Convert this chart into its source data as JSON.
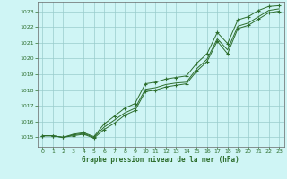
{
  "title": "Graphe pression niveau de la mer (hPa)",
  "bg_color": "#cff5f5",
  "grid_color": "#99cccc",
  "line_color": "#2d6e2d",
  "marker_color": "#2d6e2d",
  "xlim": [
    -0.5,
    23.5
  ],
  "ylim": [
    1014.4,
    1023.6
  ],
  "yticks": [
    1015,
    1016,
    1017,
    1018,
    1019,
    1020,
    1021,
    1022,
    1023
  ],
  "xticks": [
    0,
    1,
    2,
    3,
    4,
    5,
    6,
    7,
    8,
    9,
    10,
    11,
    12,
    13,
    14,
    15,
    16,
    17,
    18,
    19,
    20,
    21,
    22,
    23
  ],
  "series1": [
    1015.1,
    1015.1,
    1015.0,
    1015.1,
    1015.2,
    1014.95,
    1015.5,
    1015.9,
    1016.4,
    1016.7,
    1017.9,
    1018.0,
    1018.2,
    1018.3,
    1018.4,
    1019.2,
    1019.8,
    1021.1,
    1020.3,
    1021.9,
    1022.1,
    1022.5,
    1022.9,
    1023.0
  ],
  "series2": [
    1015.1,
    1015.1,
    1015.0,
    1015.15,
    1015.25,
    1015.0,
    1015.65,
    1016.1,
    1016.55,
    1016.85,
    1018.05,
    1018.15,
    1018.35,
    1018.45,
    1018.5,
    1019.35,
    1019.95,
    1021.25,
    1020.55,
    1022.05,
    1022.25,
    1022.65,
    1023.05,
    1023.15
  ],
  "series3": [
    1015.1,
    1015.1,
    1015.0,
    1015.2,
    1015.3,
    1015.05,
    1015.85,
    1016.35,
    1016.85,
    1017.15,
    1018.4,
    1018.5,
    1018.7,
    1018.8,
    1018.9,
    1019.7,
    1020.3,
    1021.65,
    1020.95,
    1022.45,
    1022.65,
    1023.05,
    1023.3,
    1023.35
  ],
  "marker_series": [
    1015.1,
    1015.1,
    1015.0,
    1015.1,
    1015.2,
    1014.95,
    1015.5,
    1015.9,
    1016.4,
    1016.7,
    1017.9,
    1018.0,
    1018.2,
    1018.3,
    1018.4,
    1019.2,
    1019.8,
    1021.1,
    1020.3,
    1021.9,
    1022.1,
    1022.5,
    1022.9,
    1023.0
  ],
  "marker_series2": [
    1015.1,
    1015.1,
    1015.0,
    1015.2,
    1015.3,
    1015.05,
    1015.85,
    1016.35,
    1016.85,
    1017.15,
    1018.4,
    1018.5,
    1018.7,
    1018.8,
    1018.9,
    1019.7,
    1020.3,
    1021.65,
    1020.95,
    1022.45,
    1022.65,
    1023.05,
    1023.3,
    1023.35
  ]
}
